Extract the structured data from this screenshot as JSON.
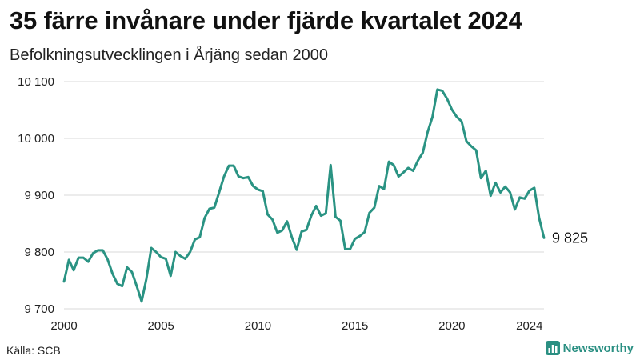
{
  "header": {
    "title": "35 färre invånare under fjärde kvartalet 2024",
    "subtitle": "Befolkningsutvecklingen i Årjäng sedan 2000"
  },
  "footer": {
    "source": "Källa: SCB",
    "brand": "Newsworthy",
    "brand_color": "#2a8f82"
  },
  "chart_data": {
    "type": "line",
    "title": "35 färre invånare under fjärde kvartalet 2024",
    "subtitle": "Befolkningsutvecklingen i Årjäng sedan 2000",
    "xlabel": "",
    "ylabel": "",
    "xlim": [
      2000,
      2024.75
    ],
    "ylim": [
      9700,
      10100
    ],
    "x_ticks": [
      2000,
      2005,
      2010,
      2015,
      2020,
      2024
    ],
    "x_tick_labels": [
      "2000",
      "2005",
      "2010",
      "2015",
      "2020",
      "2024"
    ],
    "y_ticks": [
      9700,
      9800,
      9900,
      10000,
      10100
    ],
    "y_tick_labels": [
      "9 700",
      "9 800",
      "9 900",
      "10 000",
      "10 100"
    ],
    "grid": "horizontal",
    "line_color": "#2a9383",
    "end_label": "9 825",
    "series": [
      {
        "x": [
          2000.0,
          2000.25,
          2000.5,
          2000.75,
          2001.0,
          2001.25,
          2001.5,
          2001.75,
          2002.0,
          2002.25,
          2002.5,
          2002.75,
          2003.0,
          2003.25,
          2003.5,
          2003.75,
          2004.0,
          2004.25,
          2004.5,
          2004.75,
          2005.0,
          2005.25,
          2005.5,
          2005.75,
          2006.0,
          2006.25,
          2006.5,
          2006.75,
          2007.0,
          2007.25,
          2007.5,
          2007.75,
          2008.0,
          2008.25,
          2008.5,
          2008.75,
          2009.0,
          2009.25,
          2009.5,
          2009.75,
          2010.0,
          2010.25,
          2010.5,
          2010.75,
          2011.0,
          2011.25,
          2011.5,
          2011.75,
          2012.0,
          2012.25,
          2012.5,
          2012.75,
          2013.0,
          2013.25,
          2013.5,
          2013.75,
          2014.0,
          2014.25,
          2014.5,
          2014.75,
          2015.0,
          2015.25,
          2015.5,
          2015.75,
          2016.0,
          2016.25,
          2016.5,
          2016.75,
          2017.0,
          2017.25,
          2017.5,
          2017.75,
          2018.0,
          2018.25,
          2018.5,
          2018.75,
          2019.0,
          2019.25,
          2019.5,
          2019.75,
          2020.0,
          2020.25,
          2020.5,
          2020.75,
          2021.0,
          2021.25,
          2021.5,
          2021.75,
          2022.0,
          2022.25,
          2022.5,
          2022.75,
          2023.0,
          2023.25,
          2023.5,
          2023.75,
          2024.0,
          2024.25,
          2024.5,
          2024.75
        ],
        "values": [
          9748,
          9786,
          9768,
          9790,
          9790,
          9783,
          9798,
          9803,
          9803,
          9787,
          9762,
          9744,
          9740,
          9773,
          9765,
          9740,
          9713,
          9753,
          9807,
          9800,
          9791,
          9788,
          9758,
          9800,
          9793,
          9788,
          9800,
          9822,
          9826,
          9860,
          9876,
          9878,
          9905,
          9933,
          9952,
          9952,
          9933,
          9930,
          9932,
          9916,
          9910,
          9907,
          9866,
          9857,
          9834,
          9838,
          9854,
          9826,
          9804,
          9836,
          9839,
          9864,
          9881,
          9864,
          9868,
          9953,
          9862,
          9855,
          9805,
          9805,
          9823,
          9828,
          9835,
          9869,
          9878,
          9916,
          9911,
          9959,
          9953,
          9933,
          9940,
          9948,
          9943,
          9961,
          9975,
          10011,
          10038,
          10086,
          10084,
          10070,
          10051,
          10038,
          10030,
          9995,
          9986,
          9979,
          9930,
          9943,
          9899,
          9922,
          9905,
          9915,
          9905,
          9875,
          9896,
          9894,
          9908,
          9913,
          9860,
          9825
        ]
      }
    ]
  }
}
